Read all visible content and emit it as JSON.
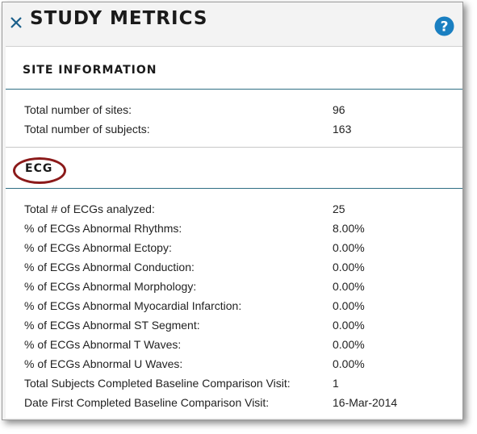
{
  "header": {
    "title": "STUDY METRICS",
    "close_icon": "close-icon",
    "help_icon": "help-icon",
    "help_glyph": "?",
    "accent": "#1a7fc1"
  },
  "site_info": {
    "title": "SITE INFORMATION",
    "rows": [
      {
        "label": "Total number of sites:",
        "value": "96"
      },
      {
        "label": "Total number of subjects:",
        "value": "163"
      }
    ]
  },
  "ecg": {
    "title": "ECG",
    "highlight_color": "#8b1a1a",
    "rows": [
      {
        "label": "Total # of ECGs analyzed:",
        "value": "25"
      },
      {
        "label": "% of ECGs Abnormal Rhythms:",
        "value": "8.00%"
      },
      {
        "label": "% of ECGs Abnormal Ectopy:",
        "value": "0.00%"
      },
      {
        "label": "% of ECGs Abnormal Conduction:",
        "value": "0.00%"
      },
      {
        "label": "% of ECGs Abnormal Morphology:",
        "value": "0.00%"
      },
      {
        "label": "% of ECGs Abnormal Myocardial Infarction:",
        "value": "0.00%"
      },
      {
        "label": "% of ECGs Abnormal ST Segment:",
        "value": "0.00%"
      },
      {
        "label": "% of ECGs Abnormal T Waves:",
        "value": "0.00%"
      },
      {
        "label": "% of ECGs Abnormal U Waves:",
        "value": "0.00%"
      },
      {
        "label": "Total Subjects Completed Baseline Comparison Visit:",
        "value": "1"
      },
      {
        "label": "Date First Completed Baseline Comparison Visit:",
        "value": "16-Mar-2014"
      }
    ]
  }
}
